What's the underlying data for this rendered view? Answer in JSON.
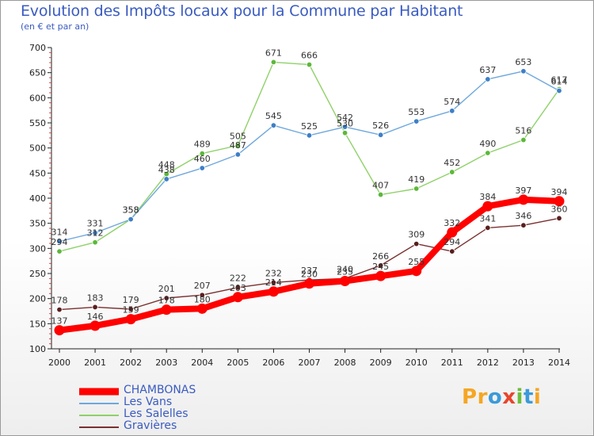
{
  "chart_data": {
    "type": "line",
    "title": "Evolution des Impôts locaux pour la Commune par Habitant",
    "subtitle": "(en € et par an)",
    "xlabel": "",
    "ylabel": "",
    "categories": [
      "2000",
      "2001",
      "2002",
      "2003",
      "2004",
      "2005",
      "2006",
      "2007",
      "2008",
      "2009",
      "2010",
      "2011",
      "2012",
      "2013",
      "2014"
    ],
    "ylim": [
      100,
      700
    ],
    "yticks": [
      100,
      150,
      200,
      250,
      300,
      350,
      400,
      450,
      500,
      550,
      600,
      650,
      700
    ],
    "grid": false,
    "legend_position": "bottom-left",
    "series": [
      {
        "name": "CHAMBONAS",
        "color": "#ff0000",
        "values": [
          137,
          146,
          159,
          178,
          180,
          203,
          214,
          230,
          235,
          245,
          255,
          332,
          384,
          397,
          394
        ]
      },
      {
        "name": "Les Vans",
        "color": "#6fa8dc",
        "values": [
          314,
          331,
          358,
          438,
          460,
          487,
          545,
          525,
          542,
          526,
          553,
          574,
          637,
          653,
          614
        ]
      },
      {
        "name": "Les Salelles",
        "color": "#8fd16a",
        "values": [
          294,
          312,
          358,
          448,
          489,
          505,
          671,
          666,
          530,
          407,
          419,
          452,
          490,
          516,
          617
        ]
      },
      {
        "name": "Gravières",
        "color": "#7a3030",
        "values": [
          178,
          183,
          179,
          201,
          207,
          222,
          232,
          237,
          240,
          266,
          309,
          294,
          341,
          346,
          360
        ]
      }
    ]
  },
  "logo": {
    "letters": [
      "P",
      "r",
      "o",
      "x",
      "i",
      "t",
      "i"
    ],
    "colors": [
      "#f5a623",
      "#f5a623",
      "#3b9ad9",
      "#e8452c",
      "#6abe3b",
      "#3b9ad9",
      "#f5a623"
    ]
  }
}
